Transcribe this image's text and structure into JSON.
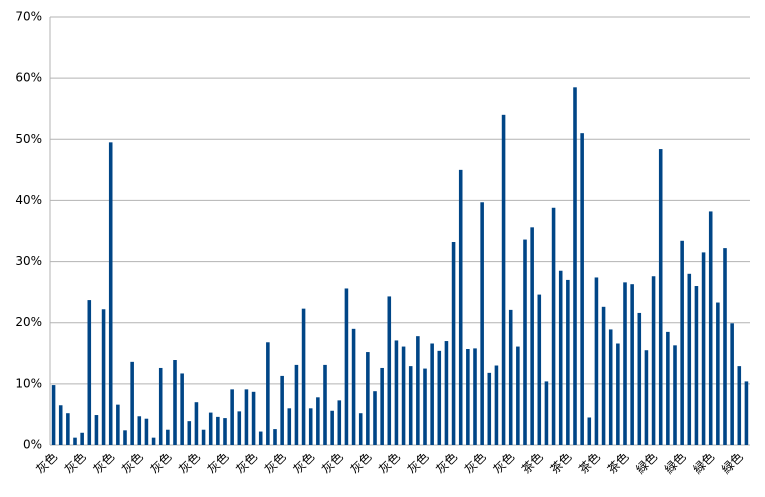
{
  "chart_data": {
    "type": "bar",
    "categories": [
      "灰色",
      null,
      null,
      null,
      "灰色",
      null,
      null,
      null,
      "灰色",
      null,
      null,
      null,
      "灰色",
      null,
      null,
      null,
      "灰色",
      null,
      null,
      null,
      "灰色",
      null,
      null,
      null,
      "灰色",
      null,
      null,
      null,
      "灰色",
      null,
      null,
      null,
      "灰色",
      null,
      null,
      null,
      "灰色",
      null,
      null,
      null,
      "灰色",
      null,
      null,
      null,
      "灰色",
      null,
      null,
      null,
      "灰色",
      null,
      null,
      null,
      "灰色",
      null,
      null,
      null,
      "灰色",
      null,
      null,
      null,
      "灰色",
      null,
      null,
      null,
      "灰色",
      null,
      null,
      null,
      "茶色",
      null,
      null,
      null,
      "茶色",
      null,
      null,
      null,
      "茶色",
      null,
      null,
      null,
      "茶色",
      null,
      null,
      null,
      "緑色",
      null,
      null,
      null,
      "緑色",
      null,
      null,
      null,
      "緑色",
      null,
      null,
      null,
      "緑色",
      null
    ],
    "values": [
      9.8,
      6.5,
      5.2,
      1.2,
      2.0,
      23.7,
      4.9,
      22.2,
      49.5,
      6.6,
      2.4,
      13.6,
      4.7,
      4.3,
      1.2,
      12.6,
      2.5,
      13.9,
      11.7,
      3.9,
      7.0,
      2.5,
      5.3,
      4.6,
      4.4,
      9.1,
      5.5,
      9.1,
      8.7,
      2.2,
      16.8,
      2.6,
      11.3,
      6.0,
      13.1,
      22.3,
      6.0,
      7.8,
      13.1,
      5.6,
      7.3,
      25.6,
      19.0,
      5.2,
      15.2,
      8.8,
      12.6,
      24.3,
      17.1,
      16.1,
      12.9,
      17.8,
      12.5,
      16.6,
      15.4,
      17.0,
      33.2,
      45.0,
      15.7,
      15.8,
      39.7,
      11.8,
      13.0,
      54.0,
      22.1,
      16.1,
      33.6,
      35.6,
      24.6,
      10.4,
      38.8,
      28.5,
      27.0,
      58.5,
      51.0,
      4.5,
      27.4,
      22.6,
      18.9,
      16.6,
      26.6,
      26.3,
      21.6,
      15.5,
      27.6,
      48.4,
      18.5,
      16.3,
      33.4,
      28.0,
      26.0,
      31.5,
      38.2,
      23.3,
      32.2,
      19.9,
      12.9,
      10.4
    ],
    "color": "#004586",
    "ylim": [
      0,
      70
    ],
    "yticks": [
      {
        "value": 0,
        "label": "0%"
      },
      {
        "value": 10,
        "label": "10%"
      },
      {
        "value": 20,
        "label": "20%"
      },
      {
        "value": 30,
        "label": "30%"
      },
      {
        "value": 40,
        "label": "40%"
      },
      {
        "value": 50,
        "label": "50%"
      },
      {
        "value": 60,
        "label": "60%"
      },
      {
        "value": 70,
        "label": "70%"
      }
    ],
    "grid": true
  }
}
